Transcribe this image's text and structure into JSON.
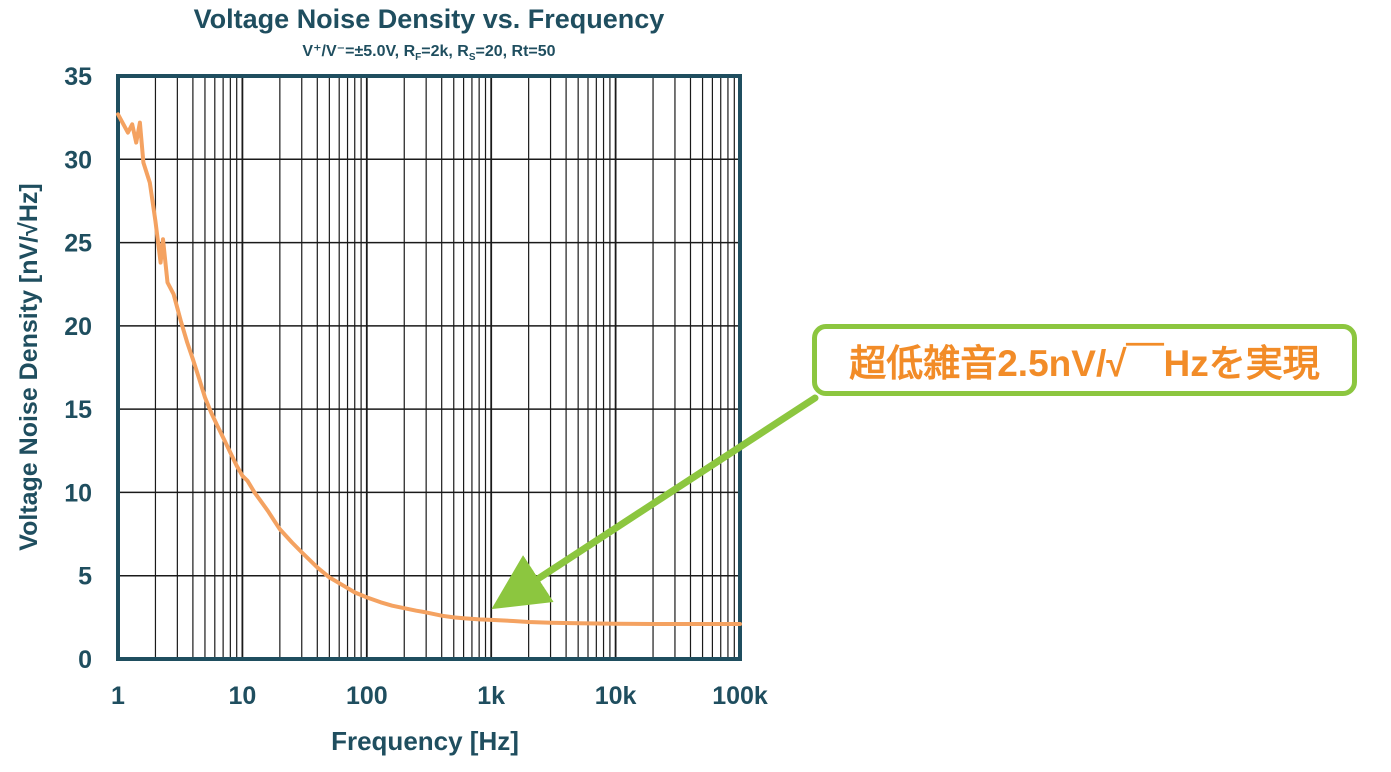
{
  "chart_data": {
    "type": "line",
    "title": "Voltage Noise Density vs. Frequency",
    "subtitle": {
      "supply": "V⁺/V⁻=±5.0V",
      "rf_label": "R",
      "rf_sub": "F",
      "rf_value": "=2k",
      "rs_label": "R",
      "rs_sub": "S",
      "rs_value": "=20",
      "rt": "Rt=50",
      "separator": ", "
    },
    "xlabel": "Frequency [Hz]",
    "ylabel": "Voltage Noise Density [nV/√Hz]",
    "x_scale": "log",
    "xlim": [
      1,
      100000
    ],
    "ylim": [
      0,
      35
    ],
    "grid": true,
    "x_ticks": [
      {
        "value": 1,
        "label": "1"
      },
      {
        "value": 10,
        "label": "10"
      },
      {
        "value": 100,
        "label": "100"
      },
      {
        "value": 1000,
        "label": "1k"
      },
      {
        "value": 10000,
        "label": "10k"
      },
      {
        "value": 100000,
        "label": "100k"
      }
    ],
    "y_ticks": [
      0,
      5,
      10,
      15,
      20,
      25,
      30,
      35
    ],
    "series": [
      {
        "color": "#f4a261",
        "points": [
          [
            1,
            32.7
          ],
          [
            1.2,
            31.6
          ],
          [
            1.3,
            32.1
          ],
          [
            1.4,
            31.0
          ],
          [
            1.5,
            32.2
          ],
          [
            1.6,
            29.8
          ],
          [
            1.8,
            28.6
          ],
          [
            2.0,
            26.3
          ],
          [
            2.2,
            23.8
          ],
          [
            2.3,
            25.2
          ],
          [
            2.5,
            22.6
          ],
          [
            2.8,
            21.9
          ],
          [
            3.2,
            20.3
          ],
          [
            3.6,
            19.0
          ],
          [
            4.0,
            18.0
          ],
          [
            4.5,
            16.8
          ],
          [
            5.0,
            15.7
          ],
          [
            5.6,
            14.8
          ],
          [
            6.3,
            14.0
          ],
          [
            7.1,
            13.2
          ],
          [
            8.0,
            12.4
          ],
          [
            9.0,
            11.6
          ],
          [
            10,
            11.0
          ],
          [
            11,
            10.7
          ],
          [
            12.5,
            10.0
          ],
          [
            14,
            9.5
          ],
          [
            16,
            8.9
          ],
          [
            18,
            8.3
          ],
          [
            20,
            7.8
          ],
          [
            25,
            7.0
          ],
          [
            30,
            6.4
          ],
          [
            40,
            5.5
          ],
          [
            50,
            4.9
          ],
          [
            65,
            4.4
          ],
          [
            80,
            4.0
          ],
          [
            100,
            3.7
          ],
          [
            130,
            3.4
          ],
          [
            160,
            3.2
          ],
          [
            200,
            3.05
          ],
          [
            250,
            2.9
          ],
          [
            300,
            2.8
          ],
          [
            400,
            2.6
          ],
          [
            500,
            2.5
          ],
          [
            600,
            2.45
          ],
          [
            800,
            2.38
          ],
          [
            1000,
            2.35
          ],
          [
            1500,
            2.28
          ],
          [
            2000,
            2.22
          ],
          [
            3000,
            2.18
          ],
          [
            5000,
            2.15
          ],
          [
            10000,
            2.12
          ],
          [
            20000,
            2.1
          ],
          [
            50000,
            2.1
          ],
          [
            100000,
            2.1
          ]
        ]
      }
    ],
    "annotation": {
      "text": "超低雑音2.5nV/√￣Hzを実現",
      "target": [
        1200,
        3.2
      ],
      "arrow_color": "#8cc63f"
    }
  }
}
